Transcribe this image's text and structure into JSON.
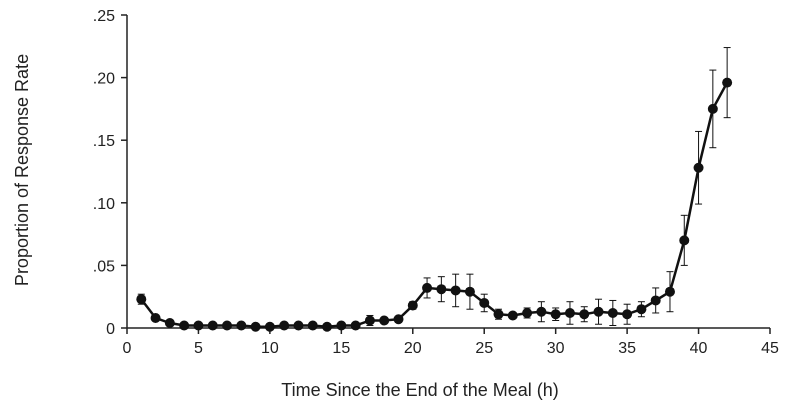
{
  "chart_data": {
    "type": "line",
    "title": "",
    "xlabel": "Time Since the End of the Meal (h)",
    "ylabel": "Proportion of Response Rate",
    "xlim": [
      0,
      45
    ],
    "ylim": [
      0,
      0.25
    ],
    "x_ticks": [
      "0",
      "5",
      "10",
      "15",
      "20",
      "25",
      "30",
      "35",
      "40",
      "45"
    ],
    "y_ticks": [
      "0",
      ".05",
      ".10",
      ".15",
      ".20",
      ".25"
    ],
    "x_tick_values": [
      0,
      5,
      10,
      15,
      20,
      25,
      30,
      35,
      40,
      45
    ],
    "y_tick_values": [
      0,
      0.05,
      0.1,
      0.15,
      0.2,
      0.25
    ],
    "grid": false,
    "legend": "none",
    "color": "#111111",
    "series": [
      {
        "x": [
          1,
          2,
          3,
          4,
          5,
          6,
          7,
          8,
          9,
          10,
          11,
          12,
          13,
          14,
          15,
          16,
          17,
          18,
          19,
          20,
          21,
          22,
          23,
          24,
          25,
          26,
          27,
          28,
          29,
          30,
          31,
          32,
          33,
          34,
          35,
          36,
          37,
          38,
          39,
          40,
          41,
          42
        ],
        "y": [
          0.023,
          0.008,
          0.004,
          0.002,
          0.002,
          0.002,
          0.002,
          0.002,
          0.001,
          0.001,
          0.002,
          0.002,
          0.002,
          0.001,
          0.002,
          0.002,
          0.006,
          0.006,
          0.007,
          0.018,
          0.032,
          0.031,
          0.03,
          0.029,
          0.02,
          0.011,
          0.01,
          0.012,
          0.013,
          0.011,
          0.012,
          0.011,
          0.013,
          0.012,
          0.011,
          0.015,
          0.022,
          0.029,
          0.07,
          0.128,
          0.175,
          0.196
        ],
        "error": [
          0.004,
          0.002,
          0.001,
          0.001,
          0.001,
          0.001,
          0.001,
          0.001,
          0.001,
          0.001,
          0.001,
          0.001,
          0.001,
          0.001,
          0.001,
          0.001,
          0.004,
          0.002,
          0.002,
          0.003,
          0.008,
          0.01,
          0.013,
          0.014,
          0.007,
          0.004,
          0.002,
          0.004,
          0.008,
          0.005,
          0.009,
          0.006,
          0.01,
          0.01,
          0.008,
          0.006,
          0.01,
          0.016,
          0.02,
          0.029,
          0.031,
          0.028
        ]
      }
    ]
  }
}
